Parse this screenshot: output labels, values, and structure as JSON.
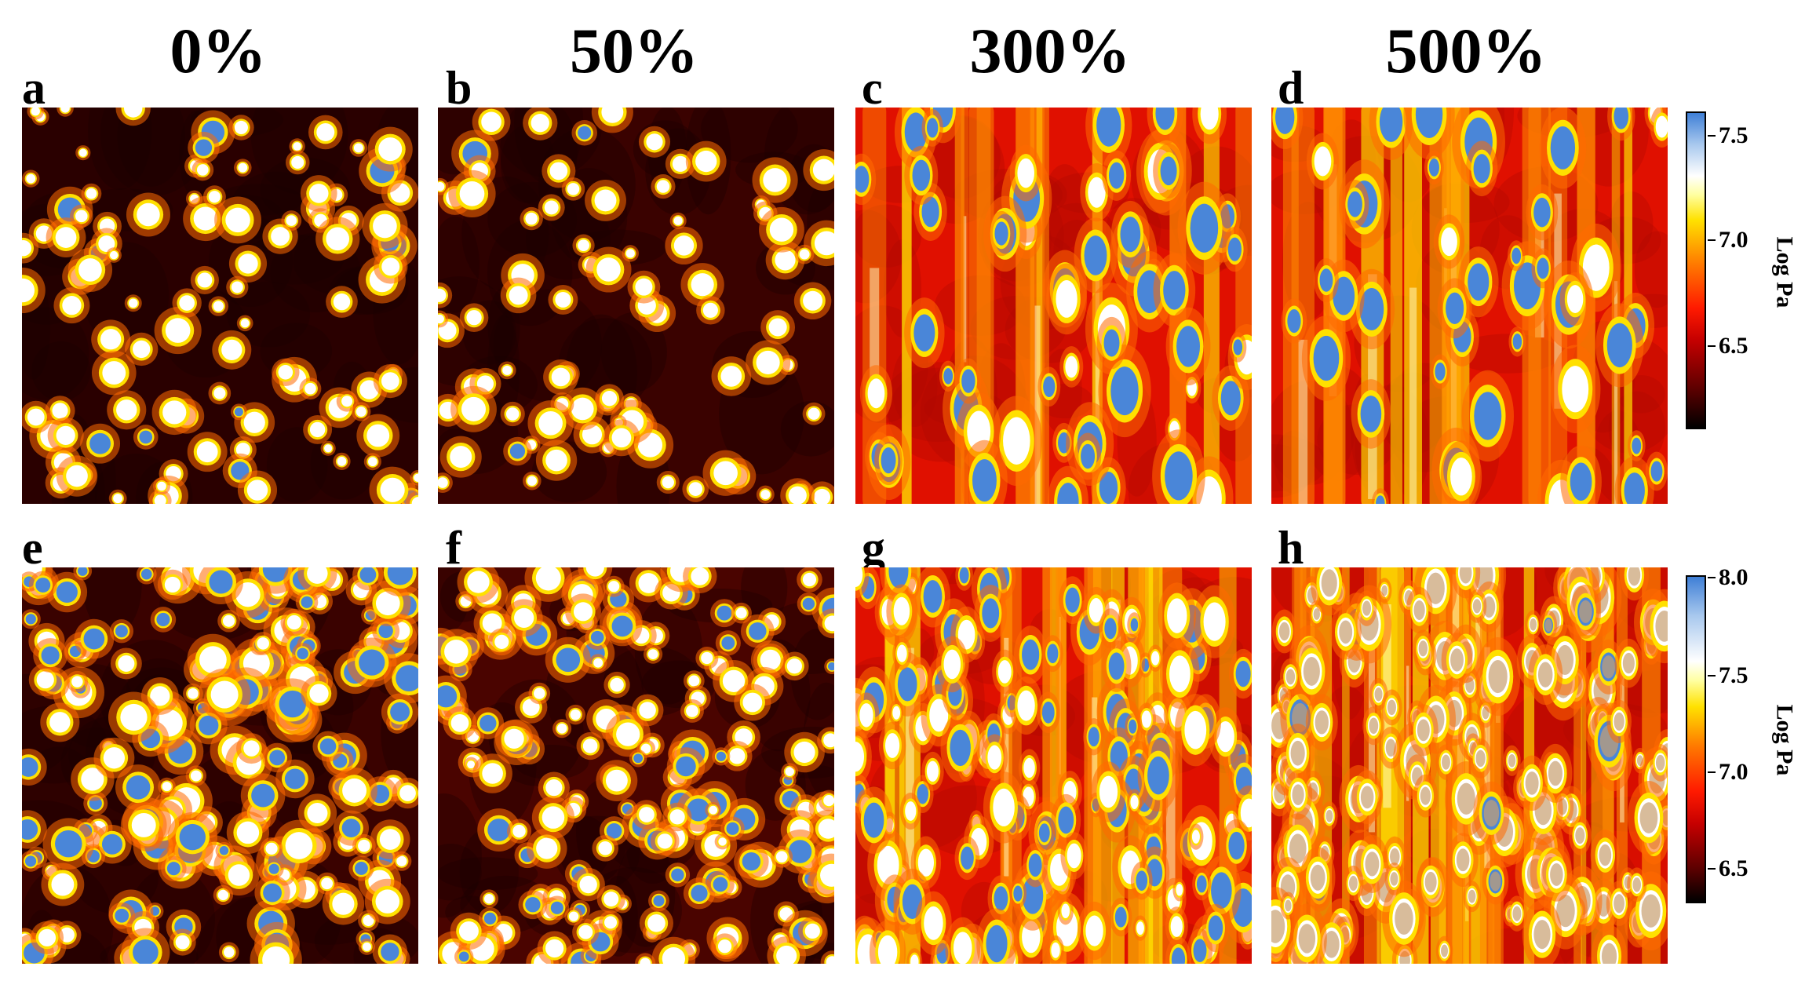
{
  "columns": [
    "0%",
    "50%",
    "300%",
    "500%"
  ],
  "panels": [
    {
      "label": "a",
      "row": 0,
      "col": 0
    },
    {
      "label": "b",
      "row": 0,
      "col": 1
    },
    {
      "label": "c",
      "row": 0,
      "col": 2
    },
    {
      "label": "d",
      "row": 0,
      "col": 3
    },
    {
      "label": "e",
      "row": 1,
      "col": 0
    },
    {
      "label": "f",
      "row": 1,
      "col": 1
    },
    {
      "label": "g",
      "row": 1,
      "col": 2
    },
    {
      "label": "h",
      "row": 1,
      "col": 3
    }
  ],
  "colorbars": [
    {
      "title": "Log Pa",
      "ticks": [
        "7.5",
        "7.0",
        "6.5"
      ]
    },
    {
      "title": "Log Pa",
      "ticks": [
        "8.0",
        "7.5",
        "7.0",
        "6.5"
      ]
    }
  ],
  "colors": {
    "dark_red": "#2a0000",
    "red": "#e01000",
    "yellow": "#ffe000",
    "white": "#ffffff",
    "blue": "#4a86d8"
  }
}
